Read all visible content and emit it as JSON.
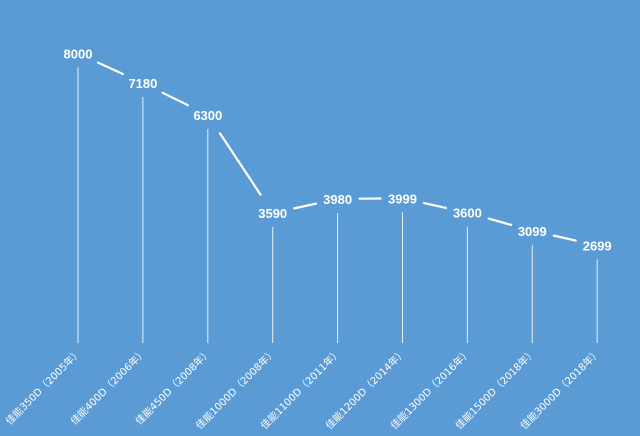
{
  "colors": {
    "background": "#5b9bd5",
    "line": "#ffffff",
    "drop_line": "#ffffff",
    "text": "#ffffff"
  },
  "chart_data": {
    "type": "line",
    "title": "",
    "xlabel": "",
    "ylabel": "",
    "grid": false,
    "legend": "none",
    "categories": [
      "佳能350D（2005年）",
      "佳能400D（2006年）",
      "佳能450D（2008年）",
      "佳能1000D（2008年）",
      "佳能1100D（2011年）",
      "佳能1200D（2014年）",
      "佳能1300D（2016年）",
      "佳能1500D（2018年）",
      "佳能3000D（2018年）"
    ],
    "values": [
      8000,
      7180,
      6300,
      3590,
      3980,
      3999,
      3600,
      3099,
      2699
    ],
    "ylim": [
      0,
      9200
    ],
    "drop_lines": true,
    "data_labels": true
  }
}
